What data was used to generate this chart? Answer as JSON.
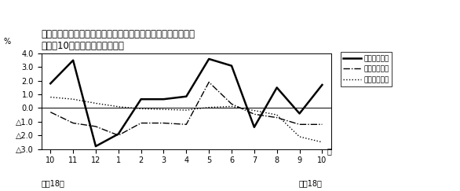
{
  "title_line1": "第４図　　賃金、労働時間、常用雇用指数対前年同月比の推移",
  "title_line2": "（規模10人以上　調査産業計）",
  "xlabel_left": "平成18年",
  "xlabel_right": "平成18年",
  "ylabel": "%",
  "x_labels": [
    "10",
    "11",
    "12",
    "1",
    "2",
    "3",
    "4",
    "5",
    "6",
    "7",
    "8",
    "9",
    "10"
  ],
  "x_label_suffix": "月",
  "ylim_min": -3.0,
  "ylim_max": 4.0,
  "yticks": [
    4.0,
    3.0,
    2.0,
    1.0,
    0.0,
    -1.0,
    -2.0,
    -3.0
  ],
  "ytick_labels": [
    "4.0",
    "3.0",
    "2.0",
    "1.0",
    "0.0",
    "△1.0",
    "△2.0",
    "△3.0"
  ],
  "line1_label": "現金給与総額",
  "line2_label": "総実労働時間",
  "line3_label": "常用雇用指数",
  "line1_values": [
    1.8,
    3.5,
    -2.8,
    -1.9,
    0.65,
    0.65,
    0.85,
    3.6,
    3.1,
    -1.4,
    1.5,
    -0.4,
    1.7
  ],
  "line2_values": [
    -0.3,
    -1.1,
    -1.35,
    -2.0,
    -1.1,
    -1.1,
    -1.2,
    1.9,
    0.3,
    -0.45,
    -0.7,
    -1.2,
    -1.2
  ],
  "line3_values": [
    0.8,
    0.65,
    0.35,
    0.1,
    -0.05,
    -0.1,
    -0.15,
    0.05,
    0.12,
    -0.18,
    -0.5,
    -2.1,
    -2.5
  ],
  "line1_color": "#000000",
  "line2_color": "#000000",
  "line3_color": "#000000",
  "background_color": "#ffffff",
  "legend_fontsize": 6.5,
  "title_fontsize": 8.5,
  "tick_fontsize": 7
}
